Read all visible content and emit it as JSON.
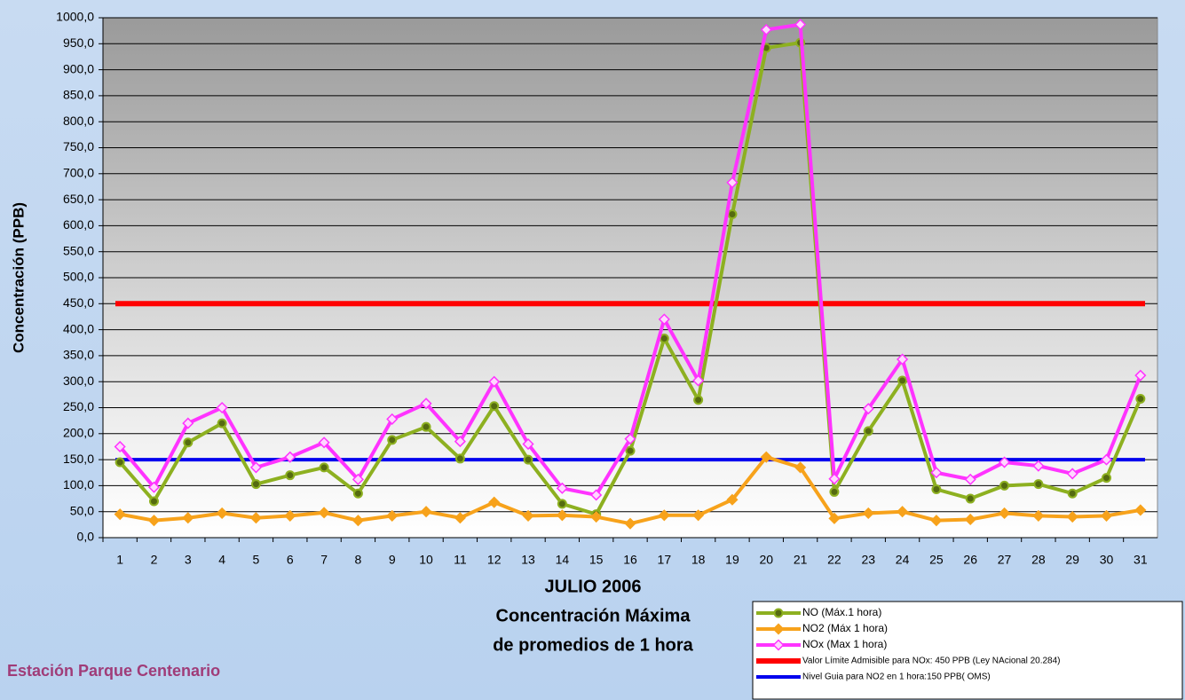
{
  "chart_data": {
    "type": "line",
    "y_label": "Concentración  (PPB)",
    "x_label_lines": [
      "JULIO 2006",
      "Concentración Máxima",
      "de promedios de 1 hora"
    ],
    "station": "Estación Parque Centenario",
    "categories": [
      "1",
      "2",
      "3",
      "4",
      "5",
      "6",
      "7",
      "8",
      "9",
      "10",
      "11",
      "12",
      "13",
      "14",
      "15",
      "16",
      "17",
      "18",
      "19",
      "20",
      "21",
      "22",
      "23",
      "24",
      "25",
      "26",
      "27",
      "28",
      "29",
      "30",
      "31"
    ],
    "series": [
      {
        "name": "NO (Máx.1 hora)",
        "color": "#8db020",
        "marker": "circle",
        "values": [
          145,
          70,
          183,
          220,
          103,
          120,
          135,
          85,
          188,
          213,
          152,
          253,
          150,
          65,
          45,
          167,
          383,
          265,
          622,
          942,
          952,
          88,
          205,
          302,
          93,
          75,
          100,
          103,
          85,
          115,
          267
        ]
      },
      {
        "name": "NO2 (Máx 1 hora)",
        "color": "#f7a21b",
        "marker": "diamond",
        "values": [
          45,
          33,
          38,
          47,
          38,
          42,
          48,
          33,
          42,
          50,
          38,
          68,
          42,
          43,
          40,
          27,
          43,
          43,
          73,
          155,
          135,
          37,
          47,
          50,
          33,
          35,
          47,
          42,
          40,
          42,
          53
        ]
      },
      {
        "name": "NOx (Max 1 hora)",
        "color": "#ff33ff",
        "marker": "diamond",
        "values": [
          175,
          97,
          220,
          250,
          135,
          155,
          183,
          112,
          228,
          258,
          185,
          300,
          180,
          95,
          82,
          190,
          420,
          302,
          683,
          977,
          987,
          113,
          248,
          343,
          125,
          112,
          145,
          138,
          123,
          150,
          312
        ]
      }
    ],
    "reference_lines": [
      {
        "name": "Valor Límite Admisible para NOx: 450 PPB (Ley NAcional 20.284)",
        "value": 450,
        "color": "#ff0000"
      },
      {
        "name": "Nivel Guia para NO2 en 1 hora:150 PPB( OMS)",
        "value": 150,
        "color": "#0000ee"
      }
    ],
    "ylim": [
      0,
      1000
    ],
    "yticks": [
      {
        "value": 0,
        "label": "0,0"
      },
      {
        "value": 50,
        "label": "50,0"
      },
      {
        "value": 100,
        "label": "100,0"
      },
      {
        "value": 150,
        "label": "150,0"
      },
      {
        "value": 200,
        "label": "200,0"
      },
      {
        "value": 250,
        "label": "250,0"
      },
      {
        "value": 300,
        "label": "300,0"
      },
      {
        "value": 350,
        "label": "350,0"
      },
      {
        "value": 400,
        "label": "400,0"
      },
      {
        "value": 450,
        "label": "450,0"
      },
      {
        "value": 500,
        "label": "500,0"
      },
      {
        "value": 550,
        "label": "550,0"
      },
      {
        "value": 600,
        "label": "600,0"
      },
      {
        "value": 650,
        "label": "650,0"
      },
      {
        "value": 700,
        "label": "700,0"
      },
      {
        "value": 750,
        "label": "750,0"
      },
      {
        "value": 800,
        "label": "800,0"
      },
      {
        "value": 850,
        "label": "850,0"
      },
      {
        "value": 900,
        "label": "900,0"
      },
      {
        "value": 950,
        "label": "950,0"
      },
      {
        "value": 1000,
        "label": "1000,0"
      }
    ],
    "grid": true
  }
}
